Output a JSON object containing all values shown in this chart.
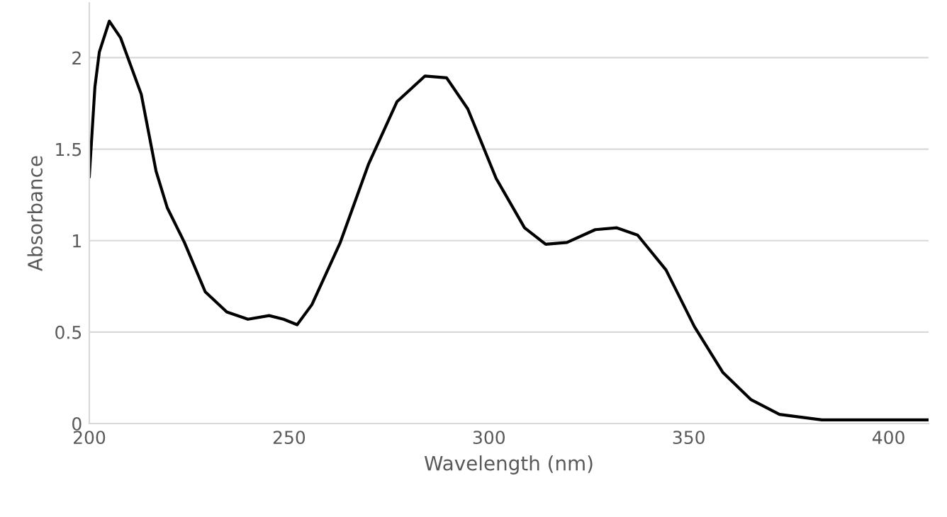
{
  "chart_data": {
    "type": "line",
    "xlabel": "Wavelength (nm)",
    "ylabel": "Absorbance",
    "xlim": [
      200,
      410
    ],
    "xticks": [
      200,
      250,
      300,
      350,
      400
    ],
    "ylim": [
      0,
      2.3
    ],
    "yticks": [
      0,
      0.5,
      1,
      1.5,
      2
    ],
    "grid": "y",
    "marker": "none",
    "line_style": "solid",
    "series": [
      {
        "color": "#000000",
        "x": [
          200,
          201.4,
          202.5,
          205,
          207.8,
          213,
          216.7,
          219.5,
          223.8,
          229,
          234.4,
          239.7,
          245,
          248.6,
          252,
          255.7,
          262.8,
          269.9,
          277,
          284,
          289.4,
          294.7,
          301.8,
          308.9,
          314.2,
          319.5,
          326.6,
          332,
          337.2,
          344.3,
          351.4,
          358.5,
          365.6,
          372.7,
          383.3,
          397.5,
          410
        ],
        "values": [
          1.35,
          1.84,
          2.03,
          2.2,
          2.11,
          1.8,
          1.38,
          1.18,
          0.99,
          0.72,
          0.61,
          0.57,
          0.59,
          0.57,
          0.54,
          0.65,
          0.99,
          1.42,
          1.76,
          1.9,
          1.89,
          1.72,
          1.34,
          1.07,
          0.98,
          0.99,
          1.06,
          1.07,
          1.03,
          0.84,
          0.53,
          0.28,
          0.13,
          0.05,
          0.02,
          0.02,
          0.02
        ]
      }
    ]
  }
}
